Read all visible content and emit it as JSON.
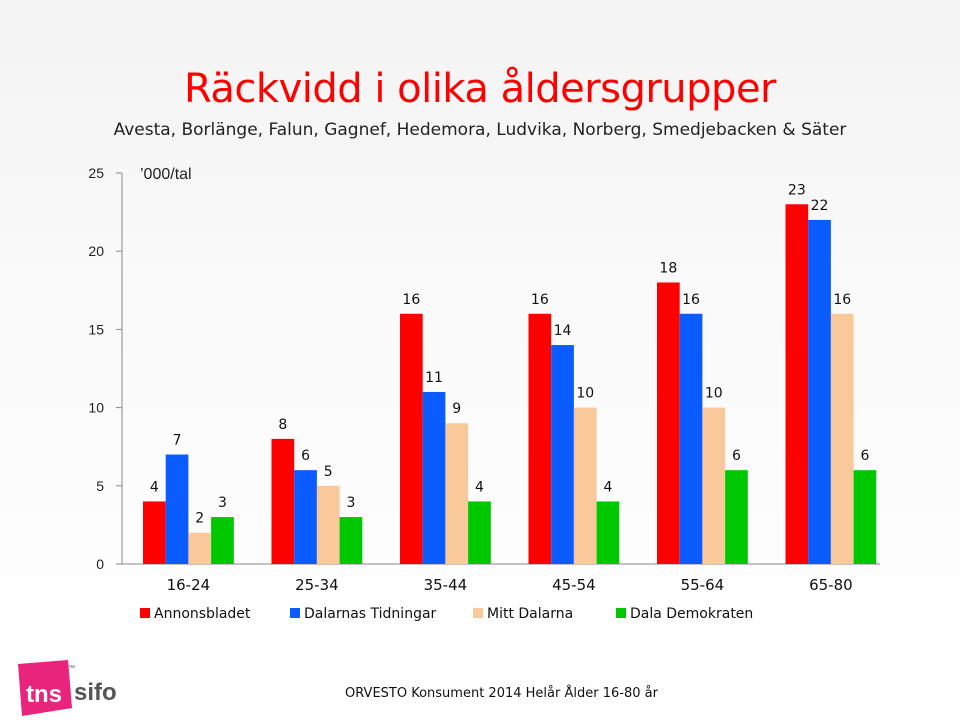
{
  "header": {
    "title": "Räckvidd i olika åldersgrupper",
    "subtitle": "Avesta, Borlänge, Falun, Gagnef, Hedemora, Ludvika, Norberg, Smedjebacken & Säter"
  },
  "chart_data": {
    "type": "bar",
    "unit_label": "’000/tal",
    "categories": [
      "16-24",
      "25-34",
      "35-44",
      "45-54",
      "55-64",
      "65-80"
    ],
    "series": [
      {
        "name": "Annonsbladet",
        "color": "#ff0000",
        "values": [
          4,
          8,
          16,
          16,
          18,
          23
        ]
      },
      {
        "name": "Dalarnas Tidningar",
        "color": "#0a5cff",
        "values": [
          7,
          6,
          11,
          14,
          16,
          22
        ]
      },
      {
        "name": "Mitt Dalarna",
        "color": "#fac99a",
        "values": [
          2,
          5,
          9,
          10,
          10,
          16
        ]
      },
      {
        "name": "Dala Demokraten",
        "color": "#00c800",
        "values": [
          3,
          3,
          4,
          4,
          6,
          6
        ]
      }
    ],
    "ylim": [
      0,
      25
    ],
    "yticks": [
      "0",
      "5",
      "10",
      "15",
      "20",
      "25"
    ],
    "grid": false,
    "legend_position": "bottom"
  },
  "logo": {
    "tns": "tns",
    "sifo": "sifo",
    "tm": "™",
    "brand_color": "#e8247c"
  },
  "footer": {
    "text": "ORVESTO Konsument 2014 Helår Ålder 16-80 år"
  }
}
